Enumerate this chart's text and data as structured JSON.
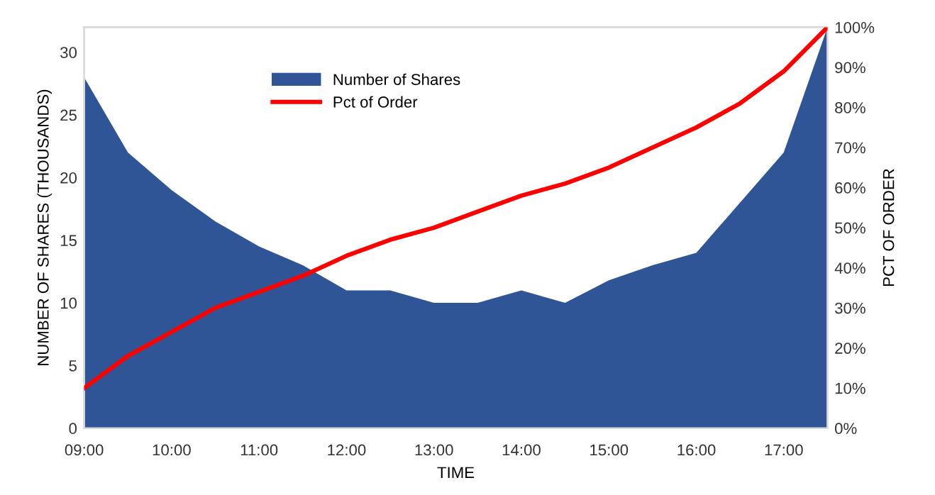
{
  "chart_data": {
    "type": "area",
    "xlabel": "TIME",
    "ylabel": "NUMBER OF SHARES (THOUSANDS)",
    "y2label": "PCT OF ORDER",
    "x": [
      9,
      9.5,
      10,
      10.5,
      11,
      11.5,
      12,
      12.5,
      13,
      13.5,
      14,
      14.5,
      15,
      15.5,
      16,
      16.5,
      17,
      17.5
    ],
    "xlim": [
      9,
      17.5
    ],
    "xticks": [
      {
        "value": 9,
        "label": "09:00"
      },
      {
        "value": 10,
        "label": "10:00"
      },
      {
        "value": 11,
        "label": "11:00"
      },
      {
        "value": 12,
        "label": "12:00"
      },
      {
        "value": 13,
        "label": "13:00"
      },
      {
        "value": 14,
        "label": "14:00"
      },
      {
        "value": 15,
        "label": "15:00"
      },
      {
        "value": 16,
        "label": "16:00"
      },
      {
        "value": 17,
        "label": "17:00"
      }
    ],
    "ylim": [
      0,
      32
    ],
    "yticks": [
      0,
      5,
      10,
      15,
      20,
      25,
      30
    ],
    "y2lim": [
      0,
      100
    ],
    "y2ticks": [
      {
        "value": 0,
        "label": "0%"
      },
      {
        "value": 10,
        "label": "10%"
      },
      {
        "value": 20,
        "label": "20%"
      },
      {
        "value": 30,
        "label": "30%"
      },
      {
        "value": 40,
        "label": "40%"
      },
      {
        "value": 50,
        "label": "50%"
      },
      {
        "value": 60,
        "label": "60%"
      },
      {
        "value": 70,
        "label": "70%"
      },
      {
        "value": 80,
        "label": "80%"
      },
      {
        "value": 90,
        "label": "90%"
      },
      {
        "value": 100,
        "label": "100%"
      }
    ],
    "series": [
      {
        "name": "Number of Shares",
        "color": "#2f5597",
        "values": [
          28,
          22,
          19,
          16.5,
          14.5,
          13,
          11,
          11,
          10,
          10,
          11,
          10,
          11.8,
          13,
          14,
          18,
          22,
          32
        ]
      },
      {
        "name": "Pct of Order",
        "type": "line",
        "axis": "y2",
        "color": "#ff0000",
        "values": [
          10,
          18,
          24,
          30,
          34,
          38,
          43,
          47,
          50,
          54,
          58,
          61,
          65,
          70,
          75,
          81,
          89,
          100
        ]
      }
    ],
    "legend": "top center",
    "grid": false,
    "marker": "none",
    "line_style": "solid"
  }
}
